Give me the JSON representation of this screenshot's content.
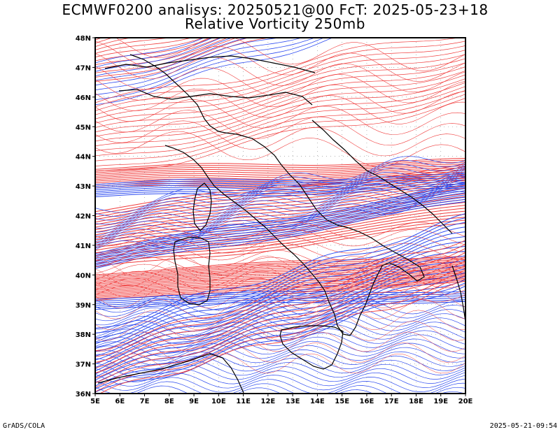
{
  "title_line1": "ECMWF0200 analisys: 20250521@00 FcT: 2025-05-23+18",
  "title_line2": "Relative Vorticity 250mb",
  "footer_left": "GrADS/COLA",
  "footer_right": "2025-05-21-09:54",
  "map": {
    "lon_range": [
      5,
      20
    ],
    "lat_range": [
      36,
      48
    ],
    "lon_ticks": [
      "5E",
      "6E",
      "7E",
      "8E",
      "9E",
      "10E",
      "11E",
      "12E",
      "13E",
      "14E",
      "15E",
      "16E",
      "17E",
      "18E",
      "19E",
      "20E"
    ],
    "lat_ticks": [
      "36N",
      "37N",
      "38N",
      "39N",
      "40N",
      "41N",
      "42N",
      "43N",
      "44N",
      "45N",
      "46N",
      "47N",
      "48N"
    ],
    "positive_color": "#f03c3c",
    "negative_color": "#2d4bf0",
    "coast_color": "#000000",
    "grid": "dotted"
  }
}
